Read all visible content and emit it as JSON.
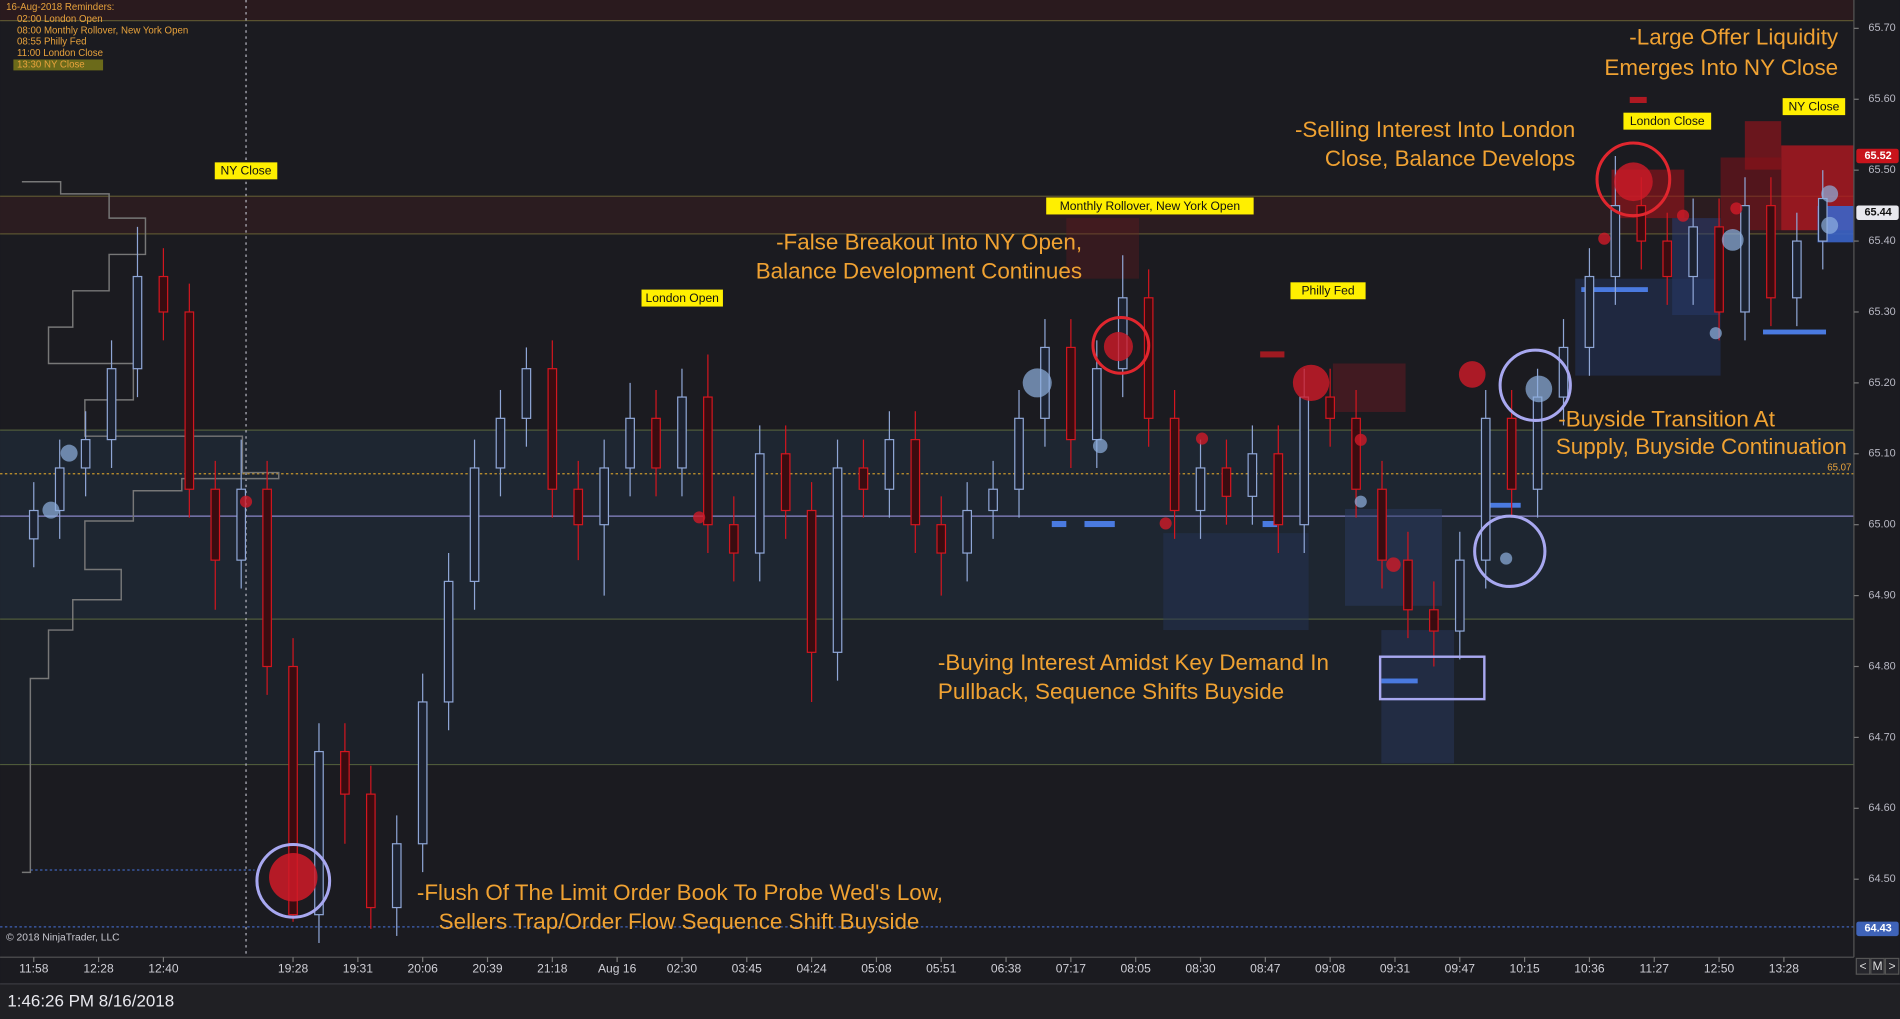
{
  "chart_data": {
    "type": "candlestick",
    "reminders_title": "16-Aug-2018 Reminders:",
    "reminders": [
      "02:00 London Open",
      "08:00 Monthly Rollover, New York Open",
      "08:55 Philly Fed",
      "11:00 London Close",
      "13:30 NY Close"
    ],
    "session_labels": [
      "NY Close",
      "London Open",
      "Monthly Rollover, New York Open",
      "Philly Fed",
      "London Close",
      "NY Close"
    ],
    "annotations": [
      {
        "lines": [
          "-Large Offer Liquidity",
          "Emerges Into NY Close"
        ]
      },
      {
        "lines": [
          "-Selling Interest Into London",
          "Close, Balance Develops"
        ]
      },
      {
        "lines": [
          "-False Breakout Into NY Open,",
          "Balance Development Continues"
        ]
      },
      {
        "lines": [
          "-Buyside Transition At",
          "Supply, Buyside Continuation"
        ]
      },
      {
        "lines": [
          "-Buying Interest Amidst Key Demand In",
          "Pullback, Sequence Shifts Buyside"
        ]
      },
      {
        "lines": [
          "-Flush Of The Limit Order Book To Probe Wed's Low,",
          "Sellers Trap/Order Flow Sequence Shift Buyside"
        ]
      }
    ],
    "copyright": "© 2018 NinjaTrader, LLC",
    "status_time": "1:46:26 PM 8/16/2018",
    "nav_buttons": [
      "<",
      "M",
      ">"
    ],
    "up_color": "#8fa6d6",
    "down_color": "#d3161f",
    "price_markers": [
      {
        "value": 65.52,
        "color": "#c8141c"
      },
      {
        "value": 65.44,
        "color": "#e8e8ee"
      },
      {
        "value": 64.43,
        "color": "#3f63b8"
      },
      {
        "value": 65.07,
        "color": "#e9a33c"
      }
    ],
    "ylim": [
      64.39,
      65.74
    ],
    "yticks": [
      {
        "value": 65.7,
        "label": "65.70"
      },
      {
        "value": 65.6,
        "label": "65.60"
      },
      {
        "value": 65.5,
        "label": "65.50"
      },
      {
        "value": 65.4,
        "label": "65.40"
      },
      {
        "value": 65.3,
        "label": "65.30"
      },
      {
        "value": 65.2,
        "label": "65.20"
      },
      {
        "value": 65.1,
        "label": "65.10"
      },
      {
        "value": 65,
        "label": "65.00"
      },
      {
        "value": 64.9,
        "label": "64.90"
      },
      {
        "value": 64.8,
        "label": "64.80"
      },
      {
        "value": 64.7,
        "label": "64.70"
      },
      {
        "value": 64.6,
        "label": "64.60"
      },
      {
        "value": 64.5,
        "label": "64.50"
      }
    ],
    "xlim": [
      -1.3,
      70.2
    ],
    "xticks": [
      {
        "value": 0,
        "label": "11:58"
      },
      {
        "value": 2.5,
        "label": "12:28"
      },
      {
        "value": 5,
        "label": "12:40"
      },
      {
        "value": 10,
        "label": "19:28"
      },
      {
        "value": 12.5,
        "label": "19:31"
      },
      {
        "value": 15,
        "label": "20:06"
      },
      {
        "value": 17.5,
        "label": "20:39"
      },
      {
        "value": 20,
        "label": "21:18"
      },
      {
        "value": 22.5,
        "label": "Aug 16"
      },
      {
        "value": 25,
        "label": "02:30"
      },
      {
        "value": 27.5,
        "label": "03:45"
      },
      {
        "value": 30,
        "label": "04:24"
      },
      {
        "value": 32.5,
        "label": "05:08"
      },
      {
        "value": 35,
        "label": "05:51"
      },
      {
        "value": 37.5,
        "label": "06:38"
      },
      {
        "value": 40,
        "label": "07:17"
      },
      {
        "value": 42.5,
        "label": "08:05"
      },
      {
        "value": 45,
        "label": "08:30"
      },
      {
        "value": 47.5,
        "label": "08:47"
      },
      {
        "value": 50,
        "label": "09:08"
      },
      {
        "value": 52.5,
        "label": "09:31"
      },
      {
        "value": 55,
        "label": "09:47"
      },
      {
        "value": 57.5,
        "label": "10:15"
      },
      {
        "value": 60,
        "label": "10:36"
      },
      {
        "value": 62.5,
        "label": "11:27"
      },
      {
        "value": 65,
        "label": "12:50"
      },
      {
        "value": 67.5,
        "label": "13:28"
      }
    ],
    "open": [
      64.98,
      65.02,
      65.08,
      65.12,
      65.22,
      65.35,
      65.3,
      65.05,
      64.95,
      65.05,
      64.8,
      64.45,
      64.68,
      64.62,
      64.46,
      64.55,
      64.75,
      64.92,
      65.08,
      65.15,
      65.22,
      65.05,
      65.0,
      65.08,
      65.15,
      65.08,
      65.18,
      65.0,
      64.96,
      65.1,
      65.02,
      64.82,
      65.08,
      65.05,
      65.12,
      65.0,
      64.96,
      65.02,
      65.05,
      65.15,
      65.25,
      65.12,
      65.22,
      65.32,
      65.15,
      65.02,
      65.08,
      65.04,
      65.1,
      65.0,
      65.18,
      65.15,
      65.05,
      64.95,
      64.88,
      64.85,
      64.95,
      65.15,
      65.05,
      65.18,
      65.25,
      65.35,
      65.45,
      65.4,
      65.35,
      65.42,
      65.3,
      65.45,
      65.32,
      65.4
    ],
    "high": [
      65.06,
      65.12,
      65.16,
      65.26,
      65.42,
      65.39,
      65.34,
      65.09,
      65.12,
      65.09,
      64.84,
      64.72,
      64.72,
      64.66,
      64.59,
      64.79,
      64.96,
      65.12,
      65.19,
      65.25,
      65.26,
      65.09,
      65.12,
      65.2,
      65.19,
      65.22,
      65.24,
      65.04,
      65.14,
      65.14,
      65.06,
      65.12,
      65.12,
      65.16,
      65.16,
      65.04,
      65.06,
      65.09,
      65.19,
      65.29,
      65.29,
      65.26,
      65.38,
      65.36,
      65.19,
      65.12,
      65.12,
      65.14,
      65.14,
      65.22,
      65.22,
      65.19,
      65.09,
      64.99,
      64.92,
      64.99,
      65.19,
      65.19,
      65.22,
      65.29,
      65.39,
      65.52,
      65.49,
      65.44,
      65.46,
      65.46,
      65.49,
      65.49,
      65.44,
      65.5
    ],
    "low": [
      64.94,
      64.98,
      65.04,
      65.08,
      65.18,
      65.26,
      65.01,
      64.88,
      64.91,
      64.76,
      64.44,
      64.41,
      64.55,
      64.43,
      64.42,
      64.51,
      64.71,
      64.88,
      65.04,
      65.11,
      65.01,
      64.95,
      64.9,
      65.04,
      65.04,
      65.04,
      64.96,
      64.92,
      64.92,
      64.98,
      64.75,
      64.78,
      65.01,
      65.01,
      64.96,
      64.9,
      64.92,
      64.98,
      65.01,
      65.11,
      65.08,
      65.08,
      65.18,
      65.11,
      64.98,
      64.98,
      65.0,
      65.0,
      64.96,
      64.96,
      65.11,
      65.01,
      64.91,
      64.84,
      64.8,
      64.81,
      64.91,
      65.01,
      65.01,
      65.14,
      65.21,
      65.31,
      65.36,
      65.31,
      65.31,
      65.26,
      65.26,
      65.28,
      65.28,
      65.36
    ],
    "close": [
      65.02,
      65.08,
      65.12,
      65.22,
      65.35,
      65.3,
      65.05,
      64.95,
      65.05,
      64.8,
      64.45,
      64.68,
      64.62,
      64.46,
      64.55,
      64.75,
      64.92,
      65.08,
      65.15,
      65.22,
      65.05,
      65.0,
      65.08,
      65.15,
      65.08,
      65.18,
      65.0,
      64.96,
      65.1,
      65.02,
      64.82,
      65.08,
      65.05,
      65.12,
      65.0,
      64.96,
      65.02,
      65.05,
      65.15,
      65.25,
      65.12,
      65.22,
      65.32,
      65.15,
      65.02,
      65.08,
      65.04,
      65.1,
      65.0,
      65.18,
      65.15,
      65.05,
      64.95,
      64.88,
      64.85,
      64.95,
      65.15,
      65.05,
      65.18,
      65.25,
      65.35,
      65.45,
      65.4,
      65.35,
      65.42,
      65.3,
      65.45,
      65.32,
      65.4,
      65.46
    ]
  }
}
